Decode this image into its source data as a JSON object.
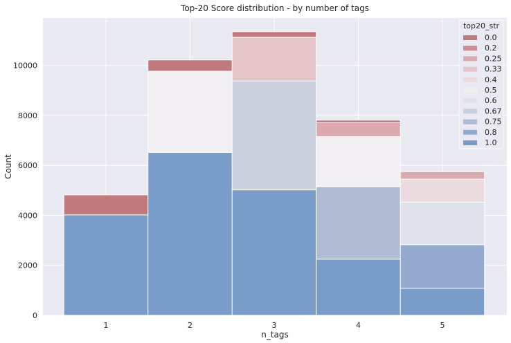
{
  "chart_data": {
    "type": "bar",
    "stacked": true,
    "title": "Top-20 Score distribution - by number of tags",
    "xlabel": "n_tags",
    "ylabel": "Count",
    "categories": [
      "1",
      "2",
      "3",
      "4",
      "5"
    ],
    "ylim": [
      0,
      11900
    ],
    "yticks": [
      0,
      2000,
      4000,
      6000,
      8000,
      10000
    ],
    "grid": true,
    "legend": {
      "title": "top20_str",
      "placement": "top-right"
    },
    "series": [
      {
        "name": "0.0",
        "color": "#c07a7e",
        "values": [
          800,
          450,
          220,
          100,
          0
        ]
      },
      {
        "name": "0.2",
        "color": "#cb8e94",
        "values": [
          0,
          0,
          0,
          0,
          0
        ]
      },
      {
        "name": "0.25",
        "color": "#dbaaae",
        "values": [
          0,
          0,
          0,
          560,
          300
        ]
      },
      {
        "name": "0.33",
        "color": "#e4c6ca",
        "values": [
          0,
          0,
          1750,
          0,
          0
        ]
      },
      {
        "name": "0.4",
        "color": "#ebdade",
        "values": [
          0,
          0,
          0,
          0,
          920
        ]
      },
      {
        "name": "0.5",
        "color": "#f2eff3",
        "values": [
          0,
          3250,
          0,
          2000,
          0
        ]
      },
      {
        "name": "0.6",
        "color": "#dfe2ea",
        "values": [
          0,
          0,
          0,
          0,
          1700
        ]
      },
      {
        "name": "0.67",
        "color": "#c9cfdd",
        "values": [
          0,
          0,
          4360,
          0,
          0
        ]
      },
      {
        "name": "0.75",
        "color": "#aebbd3",
        "values": [
          0,
          0,
          0,
          2900,
          0
        ]
      },
      {
        "name": "0.8",
        "color": "#95aacf",
        "values": [
          0,
          0,
          0,
          0,
          1750
        ]
      },
      {
        "name": "1.0",
        "color": "#7a9cc9",
        "values": [
          4020,
          6520,
          5020,
          2250,
          1080
        ]
      }
    ]
  }
}
